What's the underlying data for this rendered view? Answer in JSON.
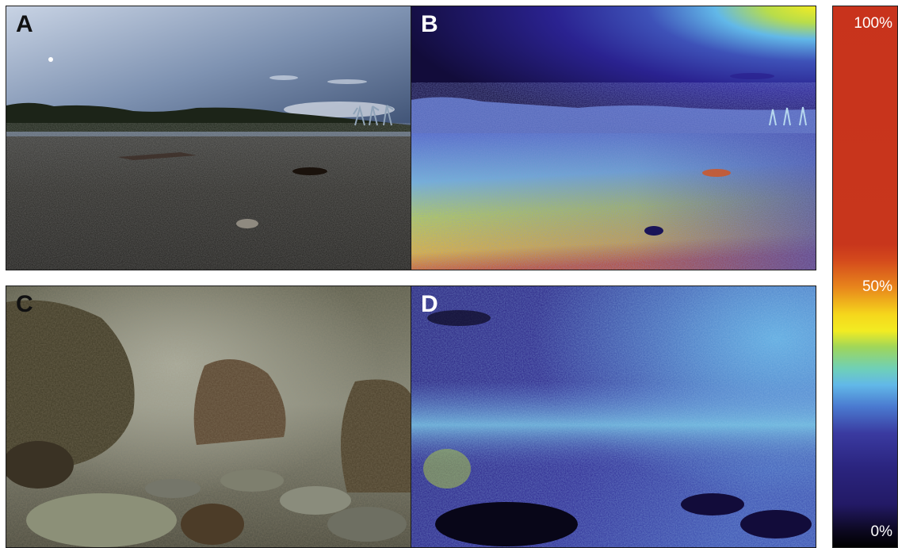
{
  "panels": [
    {
      "letter": "A",
      "description_tone": "beach-sky"
    },
    {
      "letter": "B",
      "description_tone": "beach-heatmap"
    },
    {
      "letter": "C",
      "description_tone": "underwater"
    },
    {
      "letter": "D",
      "description_tone": "underwater-heatmap"
    }
  ],
  "colorbar": {
    "top_label": "100%",
    "mid_label": "50%",
    "bottom_label": "0%",
    "colors": [
      "#c8331c",
      "#e8861c",
      "#f2ec22",
      "#9fd65a",
      "#62b8e8",
      "#3a3aa0",
      "#231a66",
      "#000000"
    ]
  }
}
